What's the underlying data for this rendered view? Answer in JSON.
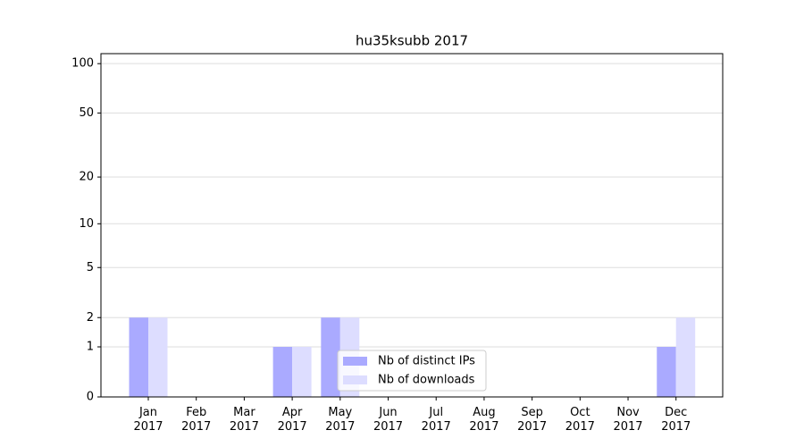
{
  "chart_data": {
    "type": "bar",
    "title": "hu35ksubb 2017",
    "categories": [
      "Jan 2017",
      "Feb 2017",
      "Mar 2017",
      "Apr 2017",
      "May 2017",
      "Jun 2017",
      "Jul 2017",
      "Aug 2017",
      "Sep 2017",
      "Oct 2017",
      "Nov 2017",
      "Dec 2017"
    ],
    "series": [
      {
        "name": "Nb of distinct IPs",
        "color": "#aaaaff",
        "values": [
          2,
          0,
          0,
          1,
          2,
          0,
          0,
          0,
          0,
          0,
          0,
          1
        ]
      },
      {
        "name": "Nb of downloads",
        "color": "#ddddff",
        "values": [
          2,
          0,
          0,
          1,
          2,
          0,
          0,
          0,
          0,
          0,
          0,
          2
        ]
      }
    ],
    "scale": "log1p",
    "ylim": [
      0,
      115
    ],
    "yticks": [
      0,
      1,
      2,
      5,
      10,
      20,
      50,
      100
    ],
    "grid": true,
    "legend": "lower center"
  }
}
